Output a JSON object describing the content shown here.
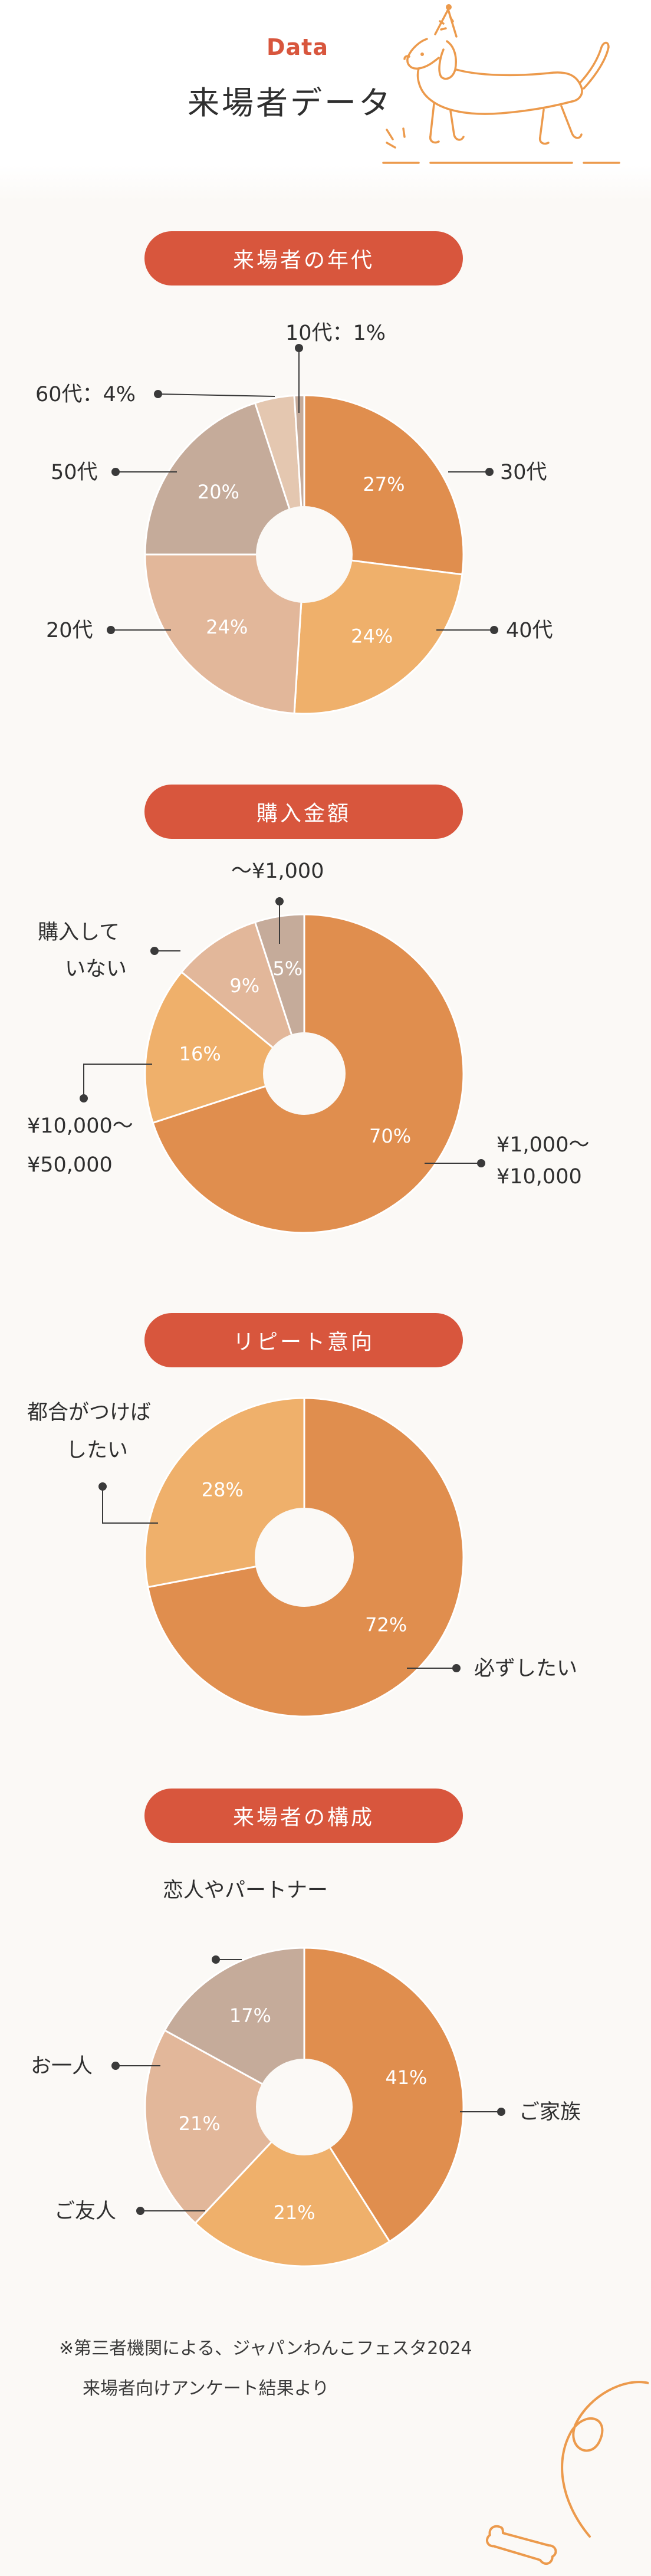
{
  "header": {
    "data_label": "Data",
    "title": "来場者データ"
  },
  "colors": {
    "accent": "#d8563d",
    "orange_dark": "#e08e4e",
    "orange_light": "#efb06b",
    "peach": "#e2b79a",
    "taupe": "#c5ab9a",
    "beige": "#e4c7b0"
  },
  "sections": [
    {
      "title": "来場者の年代"
    },
    {
      "title": "購入金額"
    },
    {
      "title": "リピート意向"
    },
    {
      "title": "来場者の構成"
    }
  ],
  "chart_data": [
    {
      "type": "pie",
      "title": "来場者の年代",
      "categories": [
        "30代",
        "40代",
        "20代",
        "50代",
        "60代",
        "10代"
      ],
      "values": [
        27,
        24,
        24,
        20,
        4,
        1
      ],
      "labels": [
        "30代",
        "40代",
        "20代",
        "50代",
        "60代：4%",
        "10代：1%"
      ],
      "pct_labels": [
        "27%",
        "24%",
        "24%",
        "20%",
        "",
        ""
      ],
      "colors": [
        "#e08e4e",
        "#efb06b",
        "#e2b79a",
        "#c5ab9a",
        "#e4c7b0",
        "#c5ab9a"
      ]
    },
    {
      "type": "pie",
      "title": "購入金額",
      "categories": [
        "¥1,000〜¥10,000",
        "¥10,000〜¥50,000",
        "購入していない",
        "〜¥1,000"
      ],
      "values": [
        70,
        16,
        9,
        5
      ],
      "labels": [
        [
          "¥1,000〜",
          "¥10,000"
        ],
        [
          "¥10,000〜",
          "¥50,000"
        ],
        [
          "購入して",
          "いない"
        ],
        [
          "〜¥1,000"
        ]
      ],
      "pct_labels": [
        "70%",
        "16%",
        "9%",
        "5%"
      ],
      "colors": [
        "#e08e4e",
        "#efb06b",
        "#e2b79a",
        "#c5ab9a"
      ]
    },
    {
      "type": "pie",
      "title": "リピート意向",
      "categories": [
        "必ずしたい",
        "都合がつけばしたい"
      ],
      "values": [
        72,
        28
      ],
      "labels": [
        [
          "必ずしたい"
        ],
        [
          "都合がつけば",
          "したい"
        ]
      ],
      "pct_labels": [
        "72%",
        "28%"
      ],
      "colors": [
        "#e08e4e",
        "#efb06b"
      ]
    },
    {
      "type": "pie",
      "title": "来場者の構成",
      "categories": [
        "ご家族",
        "ご友人",
        "お一人",
        "恋人やパートナー"
      ],
      "values": [
        41,
        21,
        21,
        17
      ],
      "labels": [
        [
          "ご家族"
        ],
        [
          "ご友人"
        ],
        [
          "お一人"
        ],
        [
          "恋人やパートナー"
        ]
      ],
      "pct_labels": [
        "41%",
        "21%",
        "21%",
        "17%"
      ],
      "colors": [
        "#e08e4e",
        "#efb06b",
        "#e2b79a",
        "#c5ab9a"
      ]
    }
  ],
  "footnote": {
    "line1": "※第三者機関による、ジャパンわんこフェスタ2024",
    "line2": "来場者向けアンケート結果より"
  }
}
